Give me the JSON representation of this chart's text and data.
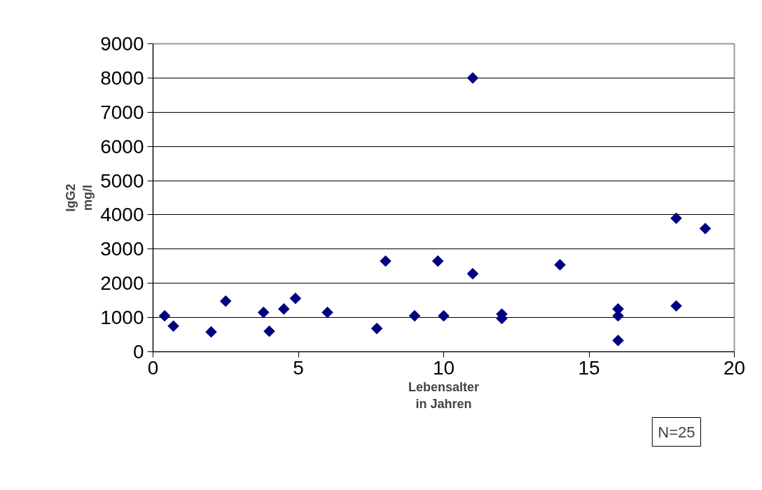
{
  "chart_data": {
    "type": "scatter",
    "xlabel": "Lebensalter\nin Jahren",
    "ylabel": "IgG2\nmg/l",
    "x": [
      0.4,
      0.7,
      2,
      2.5,
      3.8,
      4,
      4.5,
      4.9,
      6,
      7.7,
      8,
      9,
      9.8,
      10,
      11,
      11,
      12,
      12,
      14,
      16,
      16,
      16,
      18,
      18,
      19
    ],
    "series": [
      {
        "color": "#000080",
        "values": [
          1050,
          750,
          580,
          1480,
          1150,
          600,
          1250,
          1560,
          1150,
          680,
          2650,
          1050,
          2650,
          1050,
          8000,
          2280,
          1100,
          970,
          2540,
          1250,
          1050,
          330,
          3900,
          1340,
          3600
        ]
      }
    ],
    "marker": "diamond",
    "xlim": [
      0,
      20
    ],
    "xticks": [
      0,
      5,
      10,
      15,
      20
    ],
    "ylim": [
      0,
      9000
    ],
    "yticks": [
      0,
      1000,
      2000,
      3000,
      4000,
      5000,
      6000,
      7000,
      8000,
      9000
    ],
    "grid": "y",
    "annotations": [
      "N=25"
    ]
  }
}
